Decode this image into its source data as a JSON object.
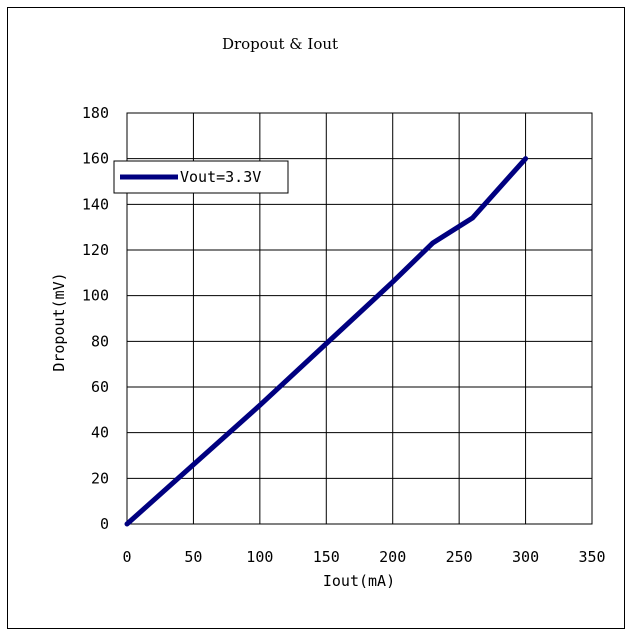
{
  "chart_data": {
    "type": "line",
    "title": "Dropout & Iout",
    "xlabel": "Iout(mA)",
    "ylabel": "Dropout(mV)",
    "xlim": [
      0,
      350
    ],
    "ylim": [
      0,
      180
    ],
    "x_ticks": [
      "0",
      "50",
      "100",
      "150",
      "200",
      "250",
      "300",
      "350"
    ],
    "y_ticks": [
      "0",
      "20",
      "40",
      "60",
      "80",
      "100",
      "120",
      "140",
      "160",
      "180"
    ],
    "grid": true,
    "legend_position": "top-left",
    "series": [
      {
        "name": "Vout=3.3V",
        "color": "#000080",
        "x": [
          0,
          50,
          100,
          150,
          200,
          230,
          260,
          300
        ],
        "y": [
          0,
          26,
          52,
          79,
          106,
          123,
          134,
          160
        ]
      }
    ]
  }
}
